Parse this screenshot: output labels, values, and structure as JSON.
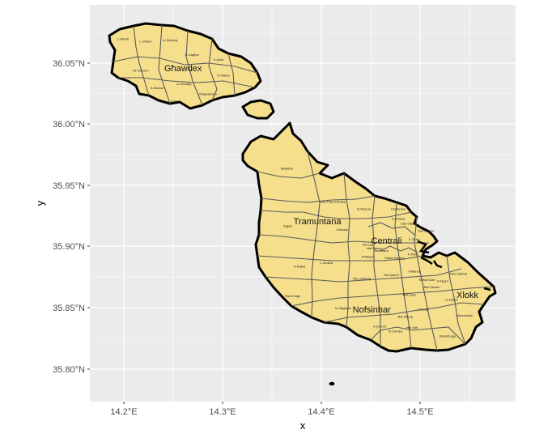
{
  "map": {
    "x_axis": {
      "title": "x",
      "ticks": [
        {
          "lon": 14.2,
          "label": "14.2°E"
        },
        {
          "lon": 14.3,
          "label": "14.3°E"
        },
        {
          "lon": 14.4,
          "label": "14.4°E"
        },
        {
          "lon": 14.5,
          "label": "14.5°E"
        }
      ]
    },
    "y_axis": {
      "title": "y",
      "ticks": [
        {
          "lat": 36.05,
          "label": "36.05°N"
        },
        {
          "lat": 36.0,
          "label": "36.00°N"
        },
        {
          "lat": 35.95,
          "label": "35.95°N"
        },
        {
          "lat": 35.9,
          "label": "35.90°N"
        },
        {
          "lat": 35.85,
          "label": "35.85°N"
        },
        {
          "lat": 35.8,
          "label": "35.80°N"
        }
      ]
    },
    "regions": [
      {
        "name": "Għawdex",
        "lon": 14.26,
        "lat": 36.046
      },
      {
        "name": "Tramuntana",
        "lon": 14.396,
        "lat": 35.921
      },
      {
        "name": "Centrali",
        "lon": 14.466,
        "lat": 35.905
      },
      {
        "name": "Nofsinhar",
        "lon": 14.451,
        "lat": 35.849
      },
      {
        "name": "Xlokk",
        "lon": 14.548,
        "lat": 35.861
      }
    ],
    "localities": [
      {
        "name": "L-Għarb",
        "lon": 14.199,
        "lat": 36.069
      },
      {
        "name": "L-Għasri",
        "lon": 14.222,
        "lat": 36.067
      },
      {
        "name": "Iż-Żebbuġ",
        "lon": 14.247,
        "lat": 36.068
      },
      {
        "name": "Ta' Kercem",
        "lon": 14.217,
        "lat": 36.043
      },
      {
        "name": "Ix-Xagħra",
        "lon": 14.269,
        "lat": 36.056
      },
      {
        "name": "Il-Qala",
        "lon": 14.296,
        "lat": 36.052
      },
      {
        "name": "Il-Munxar",
        "lon": 14.234,
        "lat": 36.029
      },
      {
        "name": "Ix-Xewkija",
        "lon": 14.261,
        "lat": 36.032
      },
      {
        "name": "In-Nadur",
        "lon": 14.301,
        "lat": 36.039
      },
      {
        "name": "Għajnsielem",
        "lon": 14.285,
        "lat": 36.024
      },
      {
        "name": "Sannat",
        "lon": 14.252,
        "lat": 36.018
      },
      {
        "name": "Mellieħa",
        "lon": 14.365,
        "lat": 35.963
      },
      {
        "name": "San Pawl il-Baħar",
        "lon": 14.412,
        "lat": 35.936
      },
      {
        "name": "In-Naxxar",
        "lon": 14.443,
        "lat": 35.93
      },
      {
        "name": "Il-Mosta",
        "lon": 14.421,
        "lat": 35.913
      },
      {
        "name": "Imġarr",
        "lon": 14.366,
        "lat": 35.916
      },
      {
        "name": "L-Imdina",
        "lon": 14.405,
        "lat": 35.886
      },
      {
        "name": "Ħ'Attard",
        "lon": 14.447,
        "lat": 35.891
      },
      {
        "name": "Ir-Rabat",
        "lon": 14.378,
        "lat": 35.883
      },
      {
        "name": "Ħad-Dingli",
        "lon": 14.371,
        "lat": 35.859
      },
      {
        "name": "Ħaż-Żebbuġ",
        "lon": 14.441,
        "lat": 35.873
      },
      {
        "name": "Is-Siġġiewi",
        "lon": 14.422,
        "lat": 35.849
      },
      {
        "name": "Il-Qrendi",
        "lon": 14.459,
        "lat": 35.834
      },
      {
        "name": "Iż-Żurrieq",
        "lon": 14.475,
        "lat": 35.83
      },
      {
        "name": "Ħal Qormi",
        "lon": 14.471,
        "lat": 35.876
      },
      {
        "name": "Ħal Luqa",
        "lon": 14.489,
        "lat": 35.86
      },
      {
        "name": "Ħal Safi",
        "lon": 14.492,
        "lat": 35.833
      },
      {
        "name": "Ħal Kirkop",
        "lon": 14.485,
        "lat": 35.842
      },
      {
        "name": "Il-Gudja",
        "lon": 14.503,
        "lat": 35.848
      },
      {
        "name": "Iż-Żejtun",
        "lon": 14.532,
        "lat": 35.856
      },
      {
        "name": "Marsaxlokk",
        "lon": 14.545,
        "lat": 35.843
      },
      {
        "name": "Birżebbuġa",
        "lon": 14.528,
        "lat": 35.826
      },
      {
        "name": "Ħaż-Żabbar",
        "lon": 14.539,
        "lat": 35.877
      },
      {
        "name": "Il-Fgura",
        "lon": 14.523,
        "lat": 35.871
      },
      {
        "name": "Il-Marsa",
        "lon": 14.494,
        "lat": 35.879
      },
      {
        "name": "Il-Pieta",
        "lon": 14.493,
        "lat": 35.893
      },
      {
        "name": "Tas-Sliema",
        "lon": 14.506,
        "lat": 35.912
      },
      {
        "name": "San Ġiljan",
        "lon": 14.488,
        "lat": 35.918
      },
      {
        "name": "Is-Swieqi",
        "lon": 14.478,
        "lat": 35.922
      },
      {
        "name": "Pembroke",
        "lon": 14.478,
        "lat": 35.93
      },
      {
        "name": "Birkirkara",
        "lon": 14.461,
        "lat": 35.896
      },
      {
        "name": "Ħal Balzan",
        "lon": 14.454,
        "lat": 35.898
      },
      {
        "name": "Ħal Lija",
        "lon": 14.447,
        "lat": 35.901
      },
      {
        "name": "Il-Gżira",
        "lon": 14.494,
        "lat": 35.905
      },
      {
        "name": "Santa Venera",
        "lon": 14.474,
        "lat": 35.89
      },
      {
        "name": "Ħal Tarxien",
        "lon": 14.512,
        "lat": 35.866
      },
      {
        "name": "Raħal Ġdid",
        "lon": 14.507,
        "lat": 35.872
      }
    ]
  }
}
